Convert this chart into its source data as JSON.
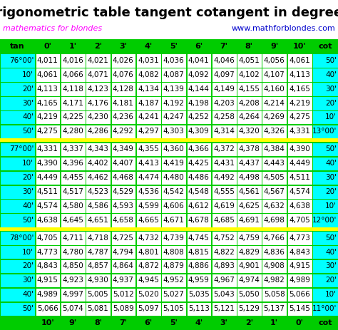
{
  "title": "Trigonometric table tangent cotangent in degrees",
  "subtitle_left": "mathematics for blondes",
  "subtitle_right": "www.mathforblondes.com",
  "col_headers": [
    "tan",
    "0'",
    "1'",
    "2'",
    "3'",
    "4'",
    "5'",
    "6'",
    "7'",
    "8'",
    "9'",
    "10'",
    "cot"
  ],
  "bottom_headers": [
    "",
    "10'",
    "9'",
    "8'",
    "7'",
    "6'",
    "5'",
    "4'",
    "3'",
    "2'",
    "1'",
    "0'",
    "cot"
  ],
  "sections": [
    {
      "rows": [
        {
          "label": "76°00'",
          "values": [
            "4,011",
            "4,016",
            "4,021",
            "4,026",
            "4,031",
            "4,036",
            "4,041",
            "4,046",
            "4,051",
            "4,056",
            "4,061"
          ],
          "cot": "50'"
        },
        {
          "label": "10'",
          "values": [
            "4,061",
            "4,066",
            "4,071",
            "4,076",
            "4,082",
            "4,087",
            "4,092",
            "4,097",
            "4,102",
            "4,107",
            "4,113"
          ],
          "cot": "40'"
        },
        {
          "label": "20'",
          "values": [
            "4,113",
            "4,118",
            "4,123",
            "4,128",
            "4,134",
            "4,139",
            "4,144",
            "4,149",
            "4,155",
            "4,160",
            "4,165"
          ],
          "cot": "30'"
        },
        {
          "label": "30'",
          "values": [
            "4,165",
            "4,171",
            "4,176",
            "4,181",
            "4,187",
            "4,192",
            "4,198",
            "4,203",
            "4,208",
            "4,214",
            "4,219"
          ],
          "cot": "20'"
        },
        {
          "label": "40'",
          "values": [
            "4,219",
            "4,225",
            "4,230",
            "4,236",
            "4,241",
            "4,247",
            "4,252",
            "4,258",
            "4,264",
            "4,269",
            "4,275"
          ],
          "cot": "10'"
        },
        {
          "label": "50'",
          "values": [
            "4,275",
            "4,280",
            "4,286",
            "4,292",
            "4,297",
            "4,303",
            "4,309",
            "4,314",
            "4,320",
            "4,326",
            "4,331"
          ],
          "cot": "13°00'"
        }
      ],
      "separator": true
    },
    {
      "rows": [
        {
          "label": "77°00'",
          "values": [
            "4,331",
            "4,337",
            "4,343",
            "4,349",
            "4,355",
            "4,360",
            "4,366",
            "4,372",
            "4,378",
            "4,384",
            "4,390"
          ],
          "cot": "50'"
        },
        {
          "label": "10'",
          "values": [
            "4,390",
            "4,396",
            "4,402",
            "4,407",
            "4,413",
            "4,419",
            "4,425",
            "4,431",
            "4,437",
            "4,443",
            "4,449"
          ],
          "cot": "40'"
        },
        {
          "label": "20'",
          "values": [
            "4,449",
            "4,455",
            "4,462",
            "4,468",
            "4,474",
            "4,480",
            "4,486",
            "4,492",
            "4,498",
            "4,505",
            "4,511"
          ],
          "cot": "30'"
        },
        {
          "label": "30'",
          "values": [
            "4,511",
            "4,517",
            "4,523",
            "4,529",
            "4,536",
            "4,542",
            "4,548",
            "4,555",
            "4,561",
            "4,567",
            "4,574"
          ],
          "cot": "20'"
        },
        {
          "label": "40'",
          "values": [
            "4,574",
            "4,580",
            "4,586",
            "4,593",
            "4,599",
            "4,606",
            "4,612",
            "4,619",
            "4,625",
            "4,632",
            "4,638"
          ],
          "cot": "10'"
        },
        {
          "label": "50'",
          "values": [
            "4,638",
            "4,645",
            "4,651",
            "4,658",
            "4,665",
            "4,671",
            "4,678",
            "4,685",
            "4,691",
            "4,698",
            "4,705"
          ],
          "cot": "12°00'"
        }
      ],
      "separator": true
    },
    {
      "rows": [
        {
          "label": "78°00'",
          "values": [
            "4,705",
            "4,711",
            "4,718",
            "4,725",
            "4,732",
            "4,739",
            "4,745",
            "4,752",
            "4,759",
            "4,766",
            "4,773"
          ],
          "cot": "50'"
        },
        {
          "label": "10'",
          "values": [
            "4,773",
            "4,780",
            "4,787",
            "4,794",
            "4,801",
            "4,808",
            "4,815",
            "4,822",
            "4,829",
            "4,836",
            "4,843"
          ],
          "cot": "40'"
        },
        {
          "label": "20'",
          "values": [
            "4,843",
            "4,850",
            "4,857",
            "4,864",
            "4,872",
            "4,879",
            "4,886",
            "4,893",
            "4,901",
            "4,908",
            "4,915"
          ],
          "cot": "30'"
        },
        {
          "label": "30'",
          "values": [
            "4,915",
            "4,923",
            "4,930",
            "4,937",
            "4,945",
            "4,952",
            "4,959",
            "4,967",
            "4,974",
            "4,982",
            "4,989"
          ],
          "cot": "20'"
        },
        {
          "label": "40'",
          "values": [
            "4,989",
            "4,997",
            "5,005",
            "5,012",
            "5,020",
            "5,027",
            "5,035",
            "5,043",
            "5,050",
            "5,058",
            "5,066"
          ],
          "cot": "10'"
        },
        {
          "label": "50'",
          "values": [
            "5,066",
            "5,074",
            "5,081",
            "5,089",
            "5,097",
            "5,105",
            "5,113",
            "5,121",
            "5,129",
            "5,137",
            "5,145"
          ],
          "cot": "11°00'"
        }
      ],
      "separator": false
    }
  ],
  "bg_color": "#00CC00",
  "white_bg": "#FFFFFF",
  "cyan_bg": "#00FFFF",
  "yellow_sep": "#FFFF00",
  "title_color": "#000000",
  "subtitle_left_color": "#FF00FF",
  "subtitle_right_color": "#0000CC",
  "green_header_text": "#000000",
  "font_size_title": 13,
  "font_size_subtitle": 8,
  "font_size_header": 8,
  "font_size_cell": 7.5
}
